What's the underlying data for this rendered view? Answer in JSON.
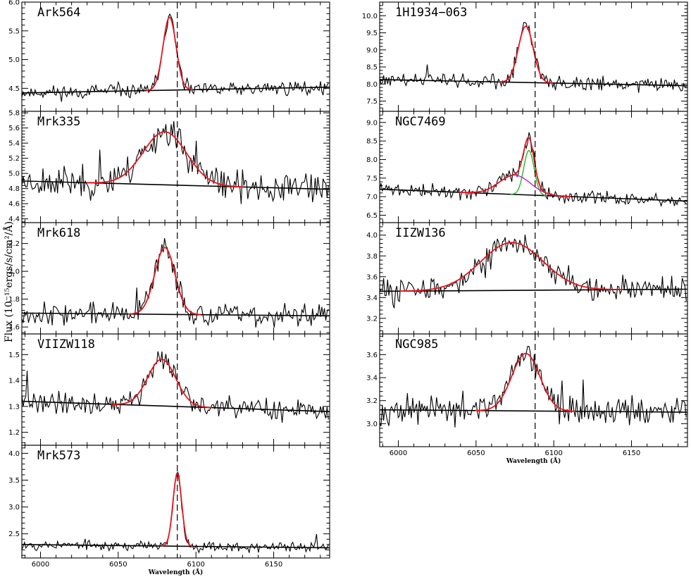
{
  "figure": {
    "ylabel": "Flux (10⁻¹⁵ergs/s/cm²/Å)",
    "xlabel": "Wavelength (Å)",
    "xticks": [
      "6000",
      "6050",
      "6100",
      "6150"
    ]
  },
  "chart_data": [
    {
      "type": "line",
      "title": "Ark564",
      "xlim": [
        5988,
        6186
      ],
      "ylim": [
        4.1,
        6.0
      ],
      "yticks": [
        4.5,
        5.0,
        5.5,
        6.0
      ],
      "ytick_labels": [
        "4.5",
        "5.0",
        "5.5",
        "6.0"
      ],
      "continuum": [
        4.42,
        4.52
      ],
      "gaussians": [
        {
          "center": 6083,
          "sigma": 4.2,
          "amp": 1.27,
          "color": "#e8141e"
        }
      ],
      "fit_color": "#e8141e",
      "noise": 0.09,
      "seed": 11,
      "vline": 6088,
      "show_xlabel": false
    },
    {
      "type": "line",
      "title": "Mrk335",
      "xlim": [
        5988,
        6186
      ],
      "ylim": [
        4.35,
        5.82
      ],
      "yticks": [
        4.4,
        4.6,
        4.8,
        5.0,
        5.2,
        5.4,
        5.6,
        5.8
      ],
      "ytick_labels": [
        "4.4",
        "4.6",
        "4.8",
        "5.0",
        "5.2",
        "5.4",
        "5.6",
        "5.8"
      ],
      "continuum": [
        4.9,
        4.79
      ],
      "gaussians": [
        {
          "center": 6080,
          "sigma": 14,
          "amp": 0.7,
          "color": "#e8141e"
        }
      ],
      "fit_color": "#e8141e",
      "noise": 0.15,
      "seed": 23,
      "vline": 6088,
      "show_xlabel": false
    },
    {
      "type": "line",
      "title": "Mrk618",
      "xlim": [
        5988,
        6186
      ],
      "ylim": [
        1.55,
        2.35
      ],
      "yticks": [
        1.6,
        1.8,
        2.0,
        2.2
      ],
      "ytick_labels": [
        "1.6",
        "1.8",
        "2.0",
        "2.2"
      ],
      "continuum": [
        1.7,
        1.68
      ],
      "gaussians": [
        {
          "center": 6080,
          "sigma": 6.5,
          "amp": 0.48,
          "color": "#e8141e"
        }
      ],
      "fit_color": "#e8141e",
      "noise": 0.06,
      "seed": 37,
      "vline": 6088,
      "show_xlabel": false
    },
    {
      "type": "line",
      "title": "VIIZW118",
      "xlim": [
        5988,
        6186
      ],
      "ylim": [
        1.15,
        1.58
      ],
      "yticks": [
        1.2,
        1.3,
        1.4,
        1.5
      ],
      "ytick_labels": [
        "1.2",
        "1.3",
        "1.4",
        "1.5"
      ],
      "continuum": [
        1.32,
        1.28
      ],
      "gaussians": [
        {
          "center": 6078,
          "sigma": 9,
          "amp": 0.18,
          "color": "#e8141e"
        }
      ],
      "fit_color": "#e8141e",
      "noise": 0.03,
      "seed": 41,
      "vline": 6088,
      "show_xlabel": false
    },
    {
      "type": "line",
      "title": "Mrk573",
      "xlim": [
        5988,
        6186
      ],
      "ylim": [
        2.05,
        4.15
      ],
      "yticks": [
        2.5,
        3.0,
        3.5,
        4.0
      ],
      "ytick_labels": [
        "2.5",
        "3.0",
        "3.5",
        "4.0"
      ],
      "continuum": [
        2.3,
        2.24
      ],
      "gaussians": [
        {
          "center": 6088,
          "sigma": 2.8,
          "amp": 1.35,
          "color": "#e8141e"
        }
      ],
      "fit_color": "#e8141e",
      "noise": 0.07,
      "seed": 53,
      "vline": 6088,
      "show_xlabel": true
    },
    {
      "type": "line",
      "title": "1H1934−063",
      "xlim": [
        5988,
        6186
      ],
      "ylim": [
        7.2,
        10.4
      ],
      "yticks": [
        7.5,
        8.0,
        8.5,
        9.0,
        9.5,
        10.0
      ],
      "ytick_labels": [
        "7.5",
        "8.0",
        "8.5",
        "9.0",
        "9.5",
        "10.0"
      ],
      "continuum": [
        8.13,
        7.95
      ],
      "gaussians": [
        {
          "center": 6082,
          "sigma": 4.8,
          "amp": 1.65,
          "color": "#e8141e"
        }
      ],
      "fit_color": "#e8141e",
      "noise": 0.16,
      "seed": 61,
      "vline": 6088,
      "show_xlabel": false
    },
    {
      "type": "line",
      "title": "NGC7469",
      "xlim": [
        5988,
        6186
      ],
      "ylim": [
        6.3,
        9.3
      ],
      "yticks": [
        6.5,
        7.0,
        7.5,
        8.0,
        8.5,
        9.0
      ],
      "ytick_labels": [
        "6.5",
        "7.0",
        "7.5",
        "8.0",
        "8.5",
        "9.0"
      ],
      "continuum": [
        7.2,
        6.88
      ],
      "gaussians": [
        {
          "center": 6084,
          "sigma": 3.3,
          "amp": 1.2,
          "color": "#22bb22"
        },
        {
          "center": 6075,
          "sigma": 10,
          "amp": 0.52,
          "color": "#bb22cc"
        }
      ],
      "fit_color": "#e8141e",
      "noise": 0.14,
      "seed": 71,
      "vline": 6088,
      "show_xlabel": false
    },
    {
      "type": "line",
      "title": "IIZW136",
      "xlim": [
        5988,
        6186
      ],
      "ylim": [
        3.05,
        4.12
      ],
      "yticks": [
        3.2,
        3.4,
        3.6,
        3.8,
        4.0
      ],
      "ytick_labels": [
        "3.2",
        "3.4",
        "3.6",
        "3.8",
        "4.0"
      ],
      "continuum": [
        3.46,
        3.48
      ],
      "gaussians": [
        {
          "center": 6073,
          "sigma": 20,
          "amp": 0.46,
          "color": "#e8141e"
        }
      ],
      "fit_color": "#e8141e",
      "noise": 0.09,
      "seed": 83,
      "vline": 6088,
      "show_xlabel": false
    },
    {
      "type": "line",
      "title": "NGC985",
      "xlim": [
        5988,
        6186
      ],
      "ylim": [
        2.8,
        3.78
      ],
      "yticks": [
        3.0,
        3.2,
        3.4,
        3.6
      ],
      "ytick_labels": [
        "3.0",
        "3.2",
        "3.4",
        "3.6"
      ],
      "continuum": [
        3.12,
        3.1
      ],
      "gaussians": [
        {
          "center": 6082,
          "sigma": 9,
          "amp": 0.5,
          "color": "#e8141e"
        }
      ],
      "fit_color": "#e8141e",
      "noise": 0.09,
      "seed": 97,
      "vline": 6088,
      "show_xlabel": true
    }
  ]
}
